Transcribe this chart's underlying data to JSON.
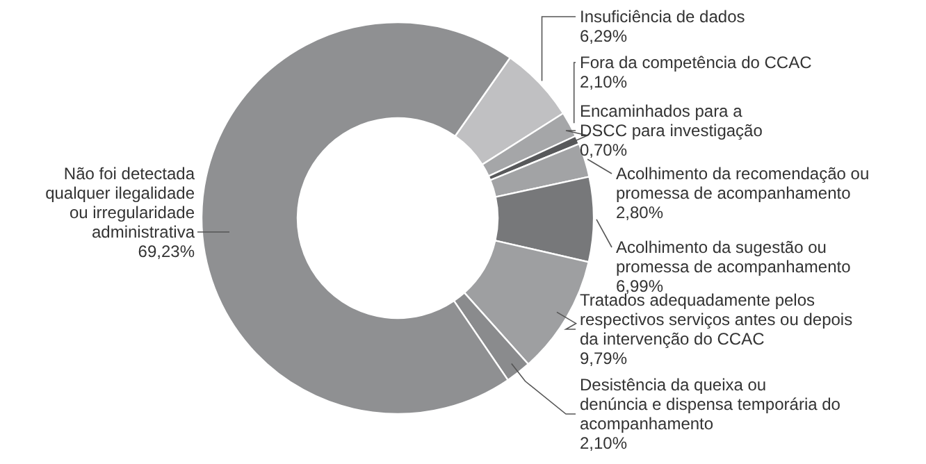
{
  "chart_data": {
    "type": "donut",
    "categories": [
      "Insuficiência de dados",
      "Fora da competência do CCAC",
      "Encaminhados para a\nDSCC para investigação",
      "Acolhimento da recomendação ou\npromessa de acompanhamento",
      "Acolhimento da sugestão ou\npromessa de acompanhamento",
      "Tratados adequadamente pelos\nrespectivos serviços antes ou depois\nda intervenção do CCAC",
      "Desistência da queixa ou\ndenúncia e dispensa temporária do\nacompanhamento",
      "Não foi detectada\nqualquer ilegalidade\nou irregularidade\nadministrativa"
    ],
    "values": [
      6.29,
      2.1,
      0.7,
      2.8,
      6.99,
      9.79,
      2.1,
      69.23
    ],
    "value_labels": [
      "6,29%",
      "2,10%",
      "0,70%",
      "2,80%",
      "6,99%",
      "9,79%",
      "2,10%",
      "69,23%"
    ],
    "colors": [
      "#c0c0c2",
      "#a5a6a8",
      "#58595b",
      "#a2a3a5",
      "#77787a",
      "#9e9fa1",
      "#8a8b8d",
      "#8f9092"
    ]
  }
}
